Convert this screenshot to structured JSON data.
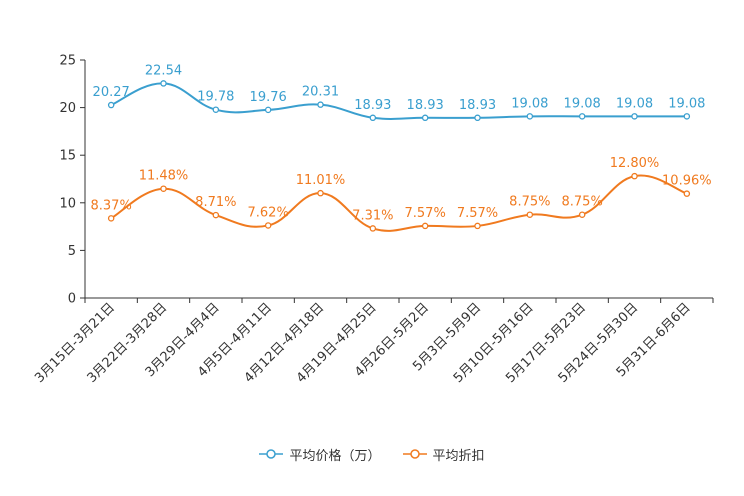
{
  "chart_data": {
    "type": "line",
    "categories": [
      "3月15日-3月21日",
      "3月22日-3月28日",
      "3月29日-4月4日",
      "4月5日-4月11日",
      "4月12日-4月18日",
      "4月19日-4月25日",
      "4月26日-5月2日",
      "5月3日-5月9日",
      "5月10日-5月16日",
      "5月17日-5月23日",
      "5月24日-5月30日",
      "5月31日-6月6日"
    ],
    "series": [
      {
        "name": "平均价格（万）",
        "color": "#3a9fcf",
        "values": [
          20.27,
          22.54,
          19.78,
          19.76,
          20.31,
          18.93,
          18.93,
          18.93,
          19.08,
          19.08,
          19.08,
          19.08
        ],
        "labels": [
          "20.27",
          "22.54",
          "19.78",
          "19.76",
          "20.31",
          "18.93",
          "18.93",
          "18.93",
          "19.08",
          "19.08",
          "19.08",
          "19.08"
        ]
      },
      {
        "name": "平均折扣",
        "color": "#f07a1f",
        "values": [
          8.37,
          11.48,
          8.71,
          7.62,
          11.01,
          7.31,
          7.57,
          7.57,
          8.75,
          8.75,
          12.8,
          10.96
        ],
        "labels": [
          "8.37%",
          "11.48%",
          "8.71%",
          "7.62%",
          "11.01%",
          "7.31%",
          "7.57%",
          "7.57%",
          "8.75%",
          "8.75%",
          "12.80%",
          "10.96%"
        ]
      }
    ],
    "yticks": [
      "0",
      "5",
      "10",
      "15",
      "20",
      "25"
    ],
    "ylim": [
      0,
      25
    ],
    "title": "",
    "xlabel": "",
    "ylabel": "",
    "legend_position": "bottom-center"
  }
}
